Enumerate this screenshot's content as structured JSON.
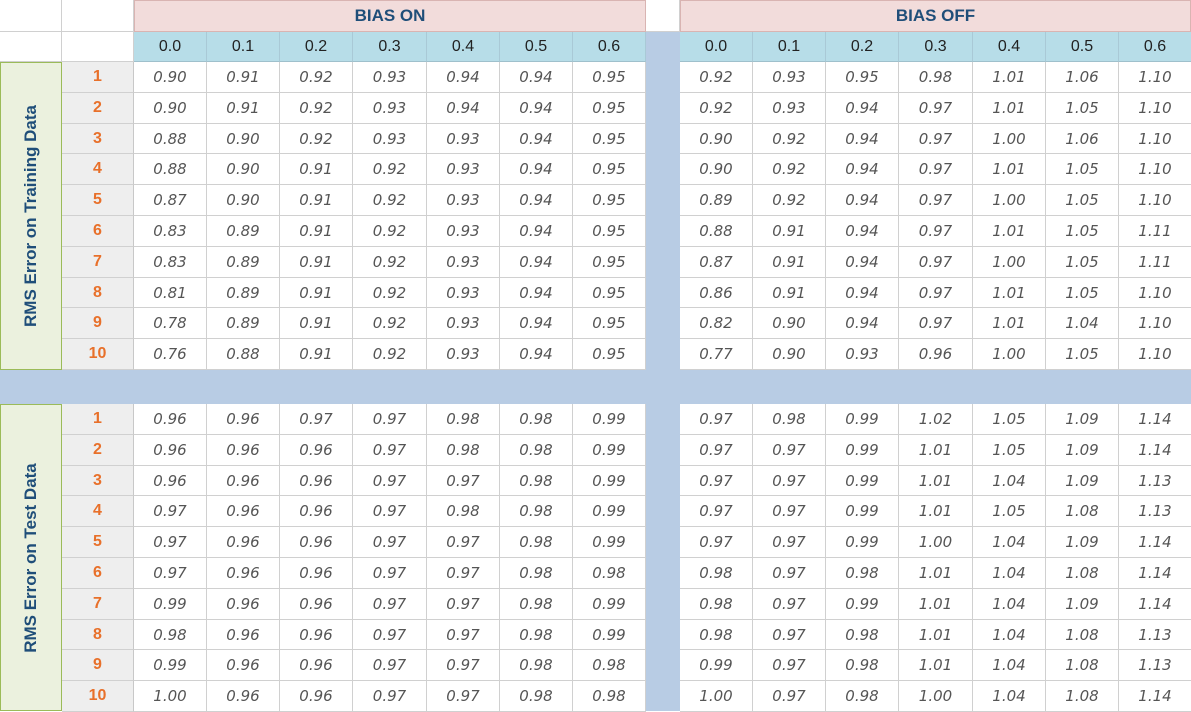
{
  "headers": {
    "bias_on": "BIAS ON",
    "bias_off": "BIAS OFF",
    "columns": [
      "0.0",
      "0.1",
      "0.2",
      "0.3",
      "0.4",
      "0.5",
      "0.6"
    ]
  },
  "rows": [
    "1",
    "2",
    "3",
    "4",
    "5",
    "6",
    "7",
    "8",
    "9",
    "10"
  ],
  "sections": [
    {
      "label": "RMS Error on Training Data",
      "bias_on": [
        [
          "0.90",
          "0.91",
          "0.92",
          "0.93",
          "0.94",
          "0.94",
          "0.95"
        ],
        [
          "0.90",
          "0.91",
          "0.92",
          "0.93",
          "0.94",
          "0.94",
          "0.95"
        ],
        [
          "0.88",
          "0.90",
          "0.92",
          "0.93",
          "0.93",
          "0.94",
          "0.95"
        ],
        [
          "0.88",
          "0.90",
          "0.91",
          "0.92",
          "0.93",
          "0.94",
          "0.95"
        ],
        [
          "0.87",
          "0.90",
          "0.91",
          "0.92",
          "0.93",
          "0.94",
          "0.95"
        ],
        [
          "0.83",
          "0.89",
          "0.91",
          "0.92",
          "0.93",
          "0.94",
          "0.95"
        ],
        [
          "0.83",
          "0.89",
          "0.91",
          "0.92",
          "0.93",
          "0.94",
          "0.95"
        ],
        [
          "0.81",
          "0.89",
          "0.91",
          "0.92",
          "0.93",
          "0.94",
          "0.95"
        ],
        [
          "0.78",
          "0.89",
          "0.91",
          "0.92",
          "0.93",
          "0.94",
          "0.95"
        ],
        [
          "0.76",
          "0.88",
          "0.91",
          "0.92",
          "0.93",
          "0.94",
          "0.95"
        ]
      ],
      "bias_off": [
        [
          "0.92",
          "0.93",
          "0.95",
          "0.98",
          "1.01",
          "1.06",
          "1.10"
        ],
        [
          "0.92",
          "0.93",
          "0.94",
          "0.97",
          "1.01",
          "1.05",
          "1.10"
        ],
        [
          "0.90",
          "0.92",
          "0.94",
          "0.97",
          "1.00",
          "1.06",
          "1.10"
        ],
        [
          "0.90",
          "0.92",
          "0.94",
          "0.97",
          "1.01",
          "1.05",
          "1.10"
        ],
        [
          "0.89",
          "0.92",
          "0.94",
          "0.97",
          "1.00",
          "1.05",
          "1.10"
        ],
        [
          "0.88",
          "0.91",
          "0.94",
          "0.97",
          "1.01",
          "1.05",
          "1.11"
        ],
        [
          "0.87",
          "0.91",
          "0.94",
          "0.97",
          "1.00",
          "1.05",
          "1.11"
        ],
        [
          "0.86",
          "0.91",
          "0.94",
          "0.97",
          "1.01",
          "1.05",
          "1.10"
        ],
        [
          "0.82",
          "0.90",
          "0.94",
          "0.97",
          "1.01",
          "1.04",
          "1.10"
        ],
        [
          "0.77",
          "0.90",
          "0.93",
          "0.96",
          "1.00",
          "1.05",
          "1.10"
        ]
      ]
    },
    {
      "label": "RMS Error on Test Data",
      "bias_on": [
        [
          "0.96",
          "0.96",
          "0.97",
          "0.97",
          "0.98",
          "0.98",
          "0.99"
        ],
        [
          "0.96",
          "0.96",
          "0.96",
          "0.97",
          "0.98",
          "0.98",
          "0.99"
        ],
        [
          "0.96",
          "0.96",
          "0.96",
          "0.97",
          "0.97",
          "0.98",
          "0.99"
        ],
        [
          "0.97",
          "0.96",
          "0.96",
          "0.97",
          "0.98",
          "0.98",
          "0.99"
        ],
        [
          "0.97",
          "0.96",
          "0.96",
          "0.97",
          "0.97",
          "0.98",
          "0.99"
        ],
        [
          "0.97",
          "0.96",
          "0.96",
          "0.97",
          "0.97",
          "0.98",
          "0.98"
        ],
        [
          "0.99",
          "0.96",
          "0.96",
          "0.97",
          "0.97",
          "0.98",
          "0.99"
        ],
        [
          "0.98",
          "0.96",
          "0.96",
          "0.97",
          "0.97",
          "0.98",
          "0.99"
        ],
        [
          "0.99",
          "0.96",
          "0.96",
          "0.97",
          "0.97",
          "0.98",
          "0.98"
        ],
        [
          "1.00",
          "0.96",
          "0.96",
          "0.97",
          "0.97",
          "0.98",
          "0.98"
        ]
      ],
      "bias_off": [
        [
          "0.97",
          "0.98",
          "0.99",
          "1.02",
          "1.05",
          "1.09",
          "1.14"
        ],
        [
          "0.97",
          "0.97",
          "0.99",
          "1.01",
          "1.05",
          "1.09",
          "1.14"
        ],
        [
          "0.97",
          "0.97",
          "0.99",
          "1.01",
          "1.04",
          "1.09",
          "1.13"
        ],
        [
          "0.97",
          "0.97",
          "0.99",
          "1.01",
          "1.05",
          "1.08",
          "1.13"
        ],
        [
          "0.97",
          "0.97",
          "0.99",
          "1.00",
          "1.04",
          "1.09",
          "1.14"
        ],
        [
          "0.98",
          "0.97",
          "0.98",
          "1.01",
          "1.04",
          "1.08",
          "1.14"
        ],
        [
          "0.98",
          "0.97",
          "0.99",
          "1.01",
          "1.04",
          "1.09",
          "1.14"
        ],
        [
          "0.98",
          "0.97",
          "0.98",
          "1.01",
          "1.04",
          "1.08",
          "1.13"
        ],
        [
          "0.99",
          "0.97",
          "0.98",
          "1.01",
          "1.04",
          "1.08",
          "1.13"
        ],
        [
          "1.00",
          "0.97",
          "0.98",
          "1.00",
          "1.04",
          "1.08",
          "1.14"
        ]
      ]
    }
  ],
  "colors": {
    "header_bias": "#f2dcdb",
    "header_cols": "#b7dde8",
    "separator": "#b8cce4",
    "row_index": "#e8702a",
    "side_label_bg": "#ebf1de",
    "title_text": "#1f4e79"
  }
}
